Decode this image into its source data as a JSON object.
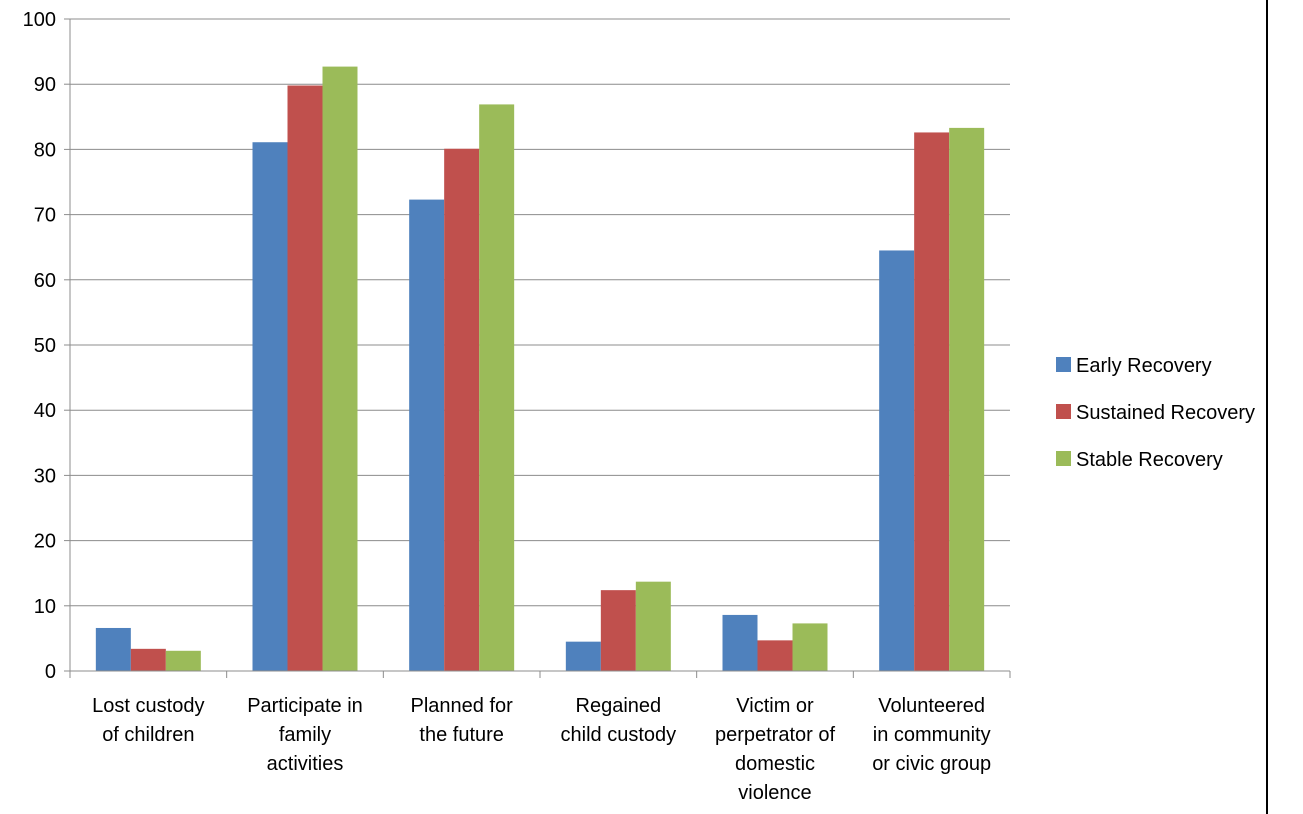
{
  "chart_data": {
    "type": "bar",
    "categories": [
      [
        "Lost custody",
        "of children"
      ],
      [
        "Participate in",
        "family",
        "activities"
      ],
      [
        "Planned for",
        "the future"
      ],
      [
        "Regained",
        "child custody"
      ],
      [
        "Victim or",
        "perpetrator of",
        "domestic",
        "violence"
      ],
      [
        "Volunteered",
        "in community",
        "or civic group"
      ]
    ],
    "series": [
      {
        "name": "Early Recovery",
        "color": "#4F81BD",
        "values": [
          6.6,
          81.1,
          72.3,
          4.5,
          8.6,
          64.5
        ]
      },
      {
        "name": "Sustained Recovery",
        "color": "#C0504D",
        "values": [
          3.4,
          89.8,
          80.1,
          12.4,
          4.7,
          82.6
        ]
      },
      {
        "name": "Stable Recovery",
        "color": "#9BBB59",
        "values": [
          3.1,
          92.7,
          86.9,
          13.7,
          7.3,
          83.3
        ]
      }
    ],
    "ylim": [
      0,
      100
    ],
    "yticks": [
      0,
      10,
      20,
      30,
      40,
      50,
      60,
      70,
      80,
      90,
      100
    ],
    "grid": true,
    "legend_position": "right"
  }
}
